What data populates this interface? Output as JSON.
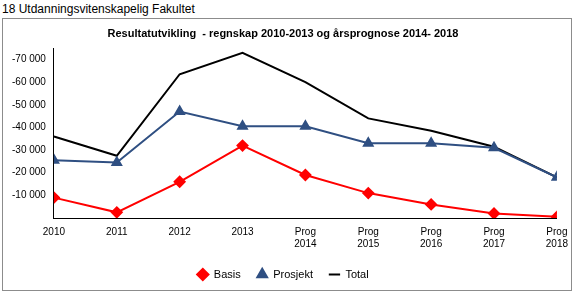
{
  "header": "18 Utdanningsvitenskapelig Fakultet",
  "chart_data": {
    "type": "line",
    "title": "Resultatutvikling  - regnskap 2010-2013 og årsprognose 2014- 2018",
    "categories": [
      "2010",
      "2011",
      "2012",
      "2013",
      "Prog 2014",
      "Prog 2015",
      "Prog 2016",
      "Prog 2017",
      "Prog 2018"
    ],
    "series": [
      {
        "name": "Basis",
        "color": "#ff0000",
        "marker": "diamond",
        "values": [
          -9000,
          -2500,
          -16000,
          -32000,
          -19000,
          -11000,
          -6000,
          -2000,
          -500
        ]
      },
      {
        "name": "Prosjekt",
        "color": "#2f4f82",
        "marker": "triangle",
        "values": [
          -25500,
          -24500,
          -47000,
          -40500,
          -40500,
          -33000,
          -33000,
          -31000,
          -18000
        ]
      },
      {
        "name": "Total",
        "color": "#000000",
        "marker": "none",
        "values": [
          -36000,
          -27500,
          -63500,
          -73000,
          -60000,
          -44000,
          -38500,
          -31500,
          -18000
        ]
      }
    ],
    "ylim": [
      0,
      -75000
    ],
    "yticks": [
      {
        "value": -70000,
        "label": "-70 000"
      },
      {
        "value": -60000,
        "label": "-60 000"
      },
      {
        "value": -50000,
        "label": "-50 000"
      },
      {
        "value": -40000,
        "label": "-40 000"
      },
      {
        "value": -30000,
        "label": "-30 000"
      },
      {
        "value": -20000,
        "label": "-20 000"
      },
      {
        "value": -10000,
        "label": "-10 000"
      }
    ],
    "grid": false,
    "legend": "bottom"
  }
}
